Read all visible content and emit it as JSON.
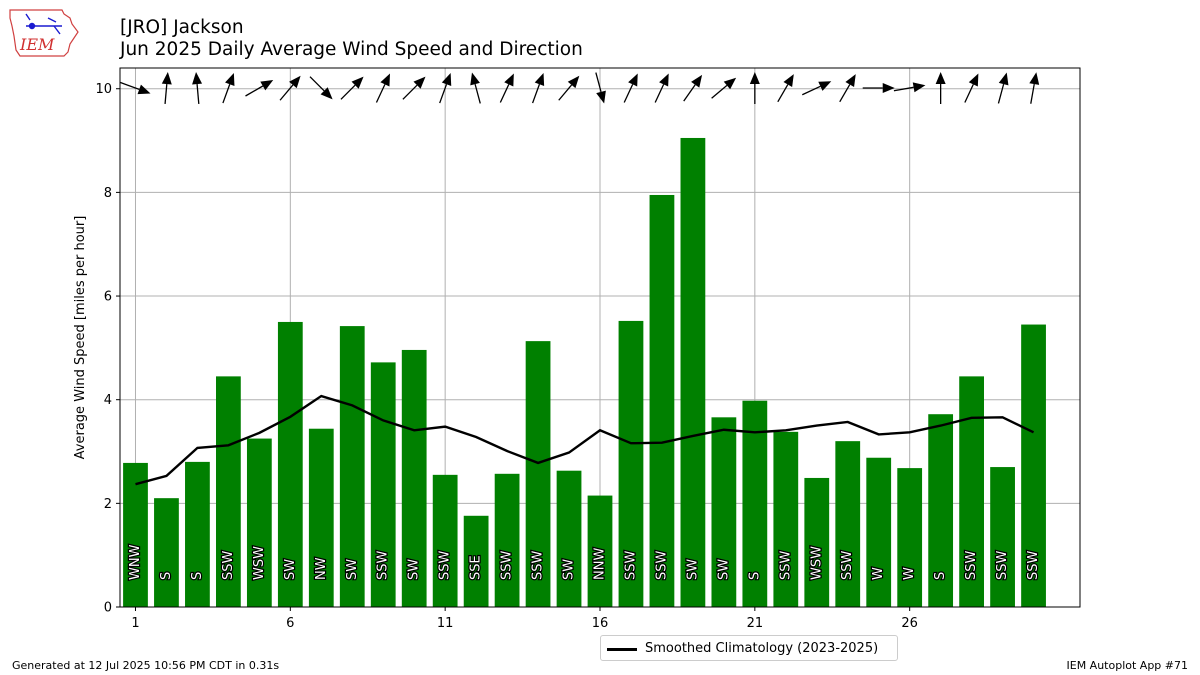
{
  "header": {
    "title_line1": "[JRO] Jackson",
    "title_line2": "Jun 2025 Daily Average Wind Speed and Direction"
  },
  "logo": {
    "text": "IEM"
  },
  "footer": {
    "generated": "Generated at 12 Jul 2025 10:56 PM CDT in 0.31s",
    "app": "IEM Autoplot App #71"
  },
  "legend": {
    "label": "Smoothed Climatology (2023-2025)"
  },
  "colors": {
    "bar": "#008000",
    "climo_line": "#000000",
    "grid": "#b0b0b0",
    "arrow": "#000000"
  },
  "chart_data": {
    "type": "bar",
    "title": "[JRO] Jackson Jun 2025 Daily Average Wind Speed and Direction",
    "ylabel": "Average Wind Speed [miles per hour]",
    "xlabel": "",
    "xlim": [
      0.5,
      31.5
    ],
    "ylim": [
      0,
      10.4
    ],
    "xticks": [
      1,
      6,
      11,
      16,
      21,
      26
    ],
    "yticks": [
      0,
      2,
      4,
      6,
      8,
      10
    ],
    "grid": true,
    "legend_position": "bottom-center",
    "days": [
      1,
      2,
      3,
      4,
      5,
      6,
      7,
      8,
      9,
      10,
      11,
      12,
      13,
      14,
      15,
      16,
      17,
      18,
      19,
      20,
      21,
      22,
      23,
      24,
      25,
      26,
      27,
      28,
      29,
      30
    ],
    "speed": [
      2.78,
      2.1,
      2.8,
      4.45,
      3.25,
      5.5,
      3.44,
      5.42,
      4.72,
      4.96,
      2.55,
      1.76,
      2.57,
      5.13,
      2.63,
      2.15,
      5.52,
      7.95,
      9.05,
      3.66,
      3.98,
      3.38,
      2.49,
      3.2,
      2.88,
      2.68,
      3.72,
      4.45,
      2.7,
      5.45
    ],
    "direction_label": [
      "WNW",
      "S",
      "S",
      "SSW",
      "WSW",
      "SW",
      "NW",
      "SW",
      "SSW",
      "SW",
      "SSW",
      "SSE",
      "SSW",
      "SSW",
      "SW",
      "NNW",
      "SSW",
      "SSW",
      "SW",
      "SW",
      "S",
      "SSW",
      "WSW",
      "SSW",
      "W",
      "W",
      "S",
      "SSW",
      "SSW",
      "SSW"
    ],
    "direction_deg": [
      290,
      185,
      175,
      200,
      240,
      220,
      315,
      225,
      205,
      225,
      200,
      165,
      205,
      200,
      220,
      345,
      205,
      205,
      215,
      230,
      180,
      210,
      245,
      210,
      270,
      260,
      180,
      205,
      195,
      190
    ],
    "series": [
      {
        "name": "Smoothed Climatology (2023-2025)",
        "type": "line",
        "values": [
          2.37,
          2.53,
          3.07,
          3.12,
          3.36,
          3.67,
          4.07,
          3.89,
          3.6,
          3.41,
          3.48,
          3.28,
          3.01,
          2.78,
          2.98,
          3.41,
          3.16,
          3.17,
          3.3,
          3.42,
          3.37,
          3.41,
          3.5,
          3.57,
          3.33,
          3.37,
          3.5,
          3.65,
          3.66,
          3.37
        ]
      }
    ]
  }
}
